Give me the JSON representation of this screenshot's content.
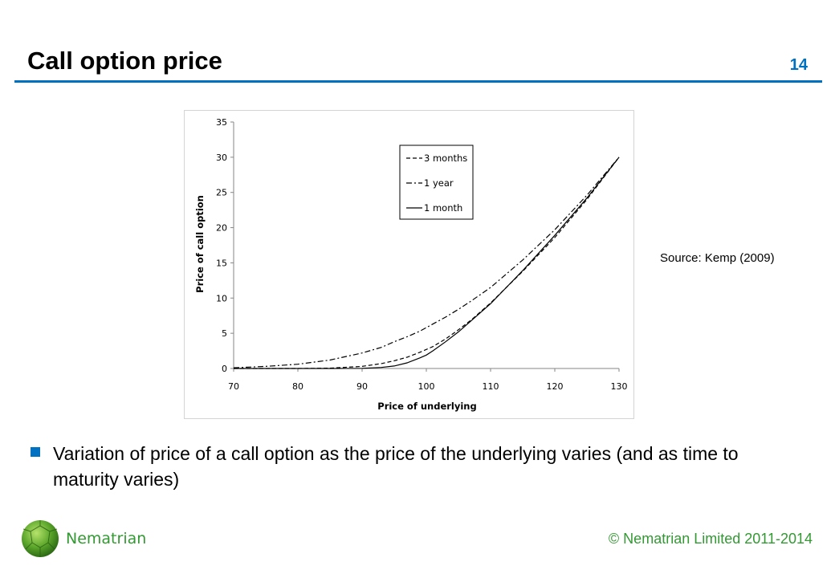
{
  "slide": {
    "title": "Call option price",
    "page_number": "14",
    "source_note": "Source: Kemp (2009)",
    "bullet": "Variation of price of a call option as the price of the underlying varies (and as time to maturity varies)"
  },
  "footer": {
    "brand": "Nematrian",
    "copyright": "© Nematrian Limited 2011-2014"
  },
  "colors": {
    "accent": "#0070c0",
    "brand_green": "#339933",
    "bullet": "#0070c0",
    "series": "#000000"
  },
  "chart_data": {
    "type": "line",
    "title": "",
    "xlabel": "Price of underlying",
    "ylabel": "Price of call option",
    "xlim": [
      70,
      130
    ],
    "ylim": [
      0,
      35
    ],
    "xticks": [
      70,
      80,
      90,
      100,
      110,
      120,
      130
    ],
    "yticks": [
      0,
      5,
      10,
      15,
      20,
      25,
      30,
      35
    ],
    "grid": false,
    "legend_position": "top-center",
    "x": [
      70,
      75,
      80,
      85,
      90,
      93,
      95,
      97,
      99,
      100,
      101,
      103,
      105,
      107,
      110,
      115,
      120,
      125,
      130
    ],
    "series": [
      {
        "name": "3 months",
        "style": "dashed",
        "values": [
          0,
          0,
          0,
          0.05,
          0.3,
          0.7,
          1.1,
          1.6,
          2.3,
          2.7,
          3.1,
          4.2,
          5.5,
          6.9,
          9.3,
          13.8,
          18.6,
          24.0,
          30.0
        ]
      },
      {
        "name": "1 year",
        "style": "dash-dot",
        "values": [
          0.1,
          0.3,
          0.6,
          1.2,
          2.2,
          3.0,
          3.8,
          4.5,
          5.3,
          5.8,
          6.3,
          7.3,
          8.4,
          9.6,
          11.5,
          15.4,
          19.7,
          24.6,
          30.0
        ]
      },
      {
        "name": "1 month",
        "style": "solid",
        "values": [
          0,
          0,
          0,
          0,
          0.02,
          0.15,
          0.35,
          0.8,
          1.5,
          1.9,
          2.5,
          3.8,
          5.2,
          6.8,
          9.2,
          13.9,
          18.9,
          24.2,
          30.0
        ]
      }
    ]
  }
}
